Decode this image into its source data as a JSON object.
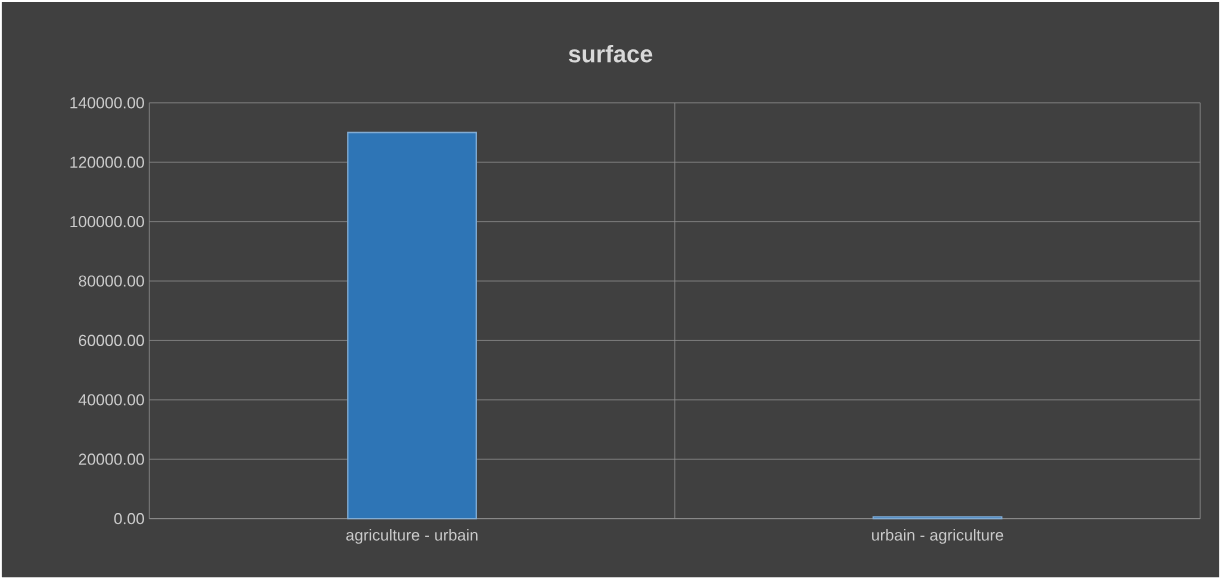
{
  "chart_data": {
    "type": "bar",
    "title": "surface",
    "categories": [
      "agriculture - urbain",
      "urbain - agriculture"
    ],
    "values": [
      130000,
      600
    ],
    "color": "#2e75b6",
    "ylim": [
      0,
      140000
    ],
    "yticks": [
      {
        "value": 0,
        "label": "0.00"
      },
      {
        "value": 20000,
        "label": "20000.00"
      },
      {
        "value": 40000,
        "label": "40000.00"
      },
      {
        "value": 60000,
        "label": "60000.00"
      },
      {
        "value": 80000,
        "label": "80000.00"
      },
      {
        "value": 100000,
        "label": "100000.00"
      },
      {
        "value": 120000,
        "label": "120000.00"
      },
      {
        "value": 140000,
        "label": "140000.00"
      }
    ],
    "grid": true
  }
}
